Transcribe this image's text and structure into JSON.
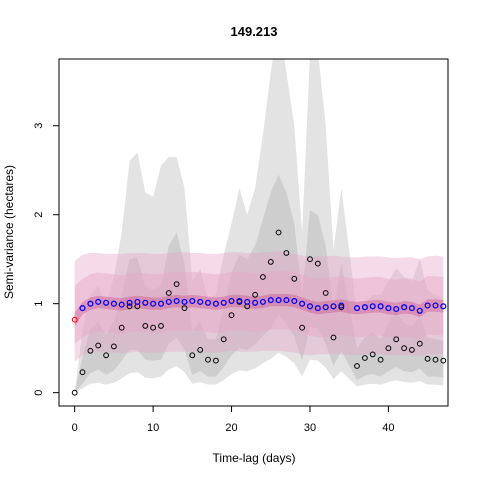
{
  "chart_data": {
    "type": "scatter",
    "title": "149.213",
    "xlabel": "Time-lag (days)",
    "ylabel": "Semi-variance (hectares)",
    "xlim": [
      -2,
      47.6
    ],
    "ylim": [
      -0.15,
      3.75
    ],
    "xticks": [
      0,
      10,
      20,
      30,
      40
    ],
    "yticks": [
      0,
      1,
      2,
      3
    ],
    "grid": false,
    "legend": "none",
    "colors": {
      "empirical_points": "#000000",
      "model_points": "#0000ff",
      "model_points_outline": "#9900cc",
      "lag0_point": "#ff0000",
      "empirical_band": "#bdbdbd",
      "model_band": "#e7a6c7",
      "model_mean_band": "#c8508f"
    },
    "empirical": {
      "x": [
        0,
        1,
        2,
        3,
        4,
        5,
        6,
        7,
        8,
        9,
        10,
        11,
        12,
        13,
        14,
        15,
        16,
        17,
        18,
        19,
        20,
        21,
        22,
        23,
        24,
        25,
        26,
        27,
        28,
        29,
        30,
        31,
        32,
        33,
        34,
        36,
        37,
        38,
        39,
        40,
        41,
        42,
        43,
        44,
        45,
        46,
        47
      ],
      "y": [
        0.0,
        0.23,
        0.47,
        0.53,
        0.42,
        0.52,
        0.73,
        0.97,
        0.97,
        0.75,
        0.73,
        0.75,
        1.12,
        1.22,
        0.95,
        0.42,
        0.48,
        0.37,
        0.36,
        0.6,
        0.87,
        1.02,
        0.97,
        1.1,
        1.3,
        1.47,
        1.8,
        1.57,
        1.28,
        0.73,
        1.5,
        1.45,
        1.12,
        0.62,
        0.96,
        0.3,
        0.39,
        0.43,
        0.37,
        0.5,
        0.6,
        0.5,
        0.48,
        0.55,
        0.38,
        0.37,
        0.36
      ]
    },
    "model": {
      "x": [
        1,
        2,
        3,
        4,
        5,
        6,
        7,
        8,
        9,
        10,
        11,
        12,
        13,
        14,
        15,
        16,
        17,
        18,
        19,
        20,
        21,
        22,
        23,
        24,
        25,
        26,
        27,
        28,
        29,
        30,
        31,
        32,
        33,
        34,
        36,
        37,
        38,
        39,
        40,
        41,
        42,
        43,
        44,
        45,
        46,
        47
      ],
      "y": [
        0.95,
        1.0,
        1.02,
        1.01,
        1.0,
        0.99,
        1.01,
        1.02,
        1.01,
        1.0,
        1.0,
        1.02,
        1.03,
        1.02,
        1.03,
        1.02,
        1.01,
        1.0,
        1.01,
        1.03,
        1.03,
        1.02,
        1.01,
        1.02,
        1.04,
        1.04,
        1.04,
        1.03,
        1.0,
        0.97,
        0.95,
        0.96,
        0.97,
        0.98,
        0.95,
        0.96,
        0.97,
        0.97,
        0.95,
        0.94,
        0.96,
        0.95,
        0.92,
        0.98,
        0.98,
        0.97
      ]
    },
    "lag0_model_point": {
      "x": 0,
      "y": 0.82
    },
    "empirical_band_outer": {
      "x": [
        0,
        1,
        2,
        3,
        4,
        5,
        6,
        7,
        8,
        9,
        10,
        11,
        12,
        13,
        14,
        15,
        16,
        17,
        18,
        19,
        20,
        21,
        22,
        23,
        24,
        25,
        26,
        27,
        28,
        29,
        30,
        31,
        32,
        33,
        34,
        36,
        37,
        38,
        39,
        40,
        41,
        42,
        43,
        44,
        45,
        46,
        47
      ],
      "upper": [
        0.0,
        0.7,
        1.1,
        1.2,
        1.0,
        1.3,
        1.8,
        2.6,
        2.7,
        2.25,
        2.2,
        2.55,
        2.65,
        2.65,
        2.3,
        1.25,
        1.4,
        1.05,
        1.1,
        1.55,
        1.9,
        2.3,
        2.0,
        2.3,
        2.9,
        3.6,
        4.2,
        3.6,
        3.0,
        1.8,
        3.8,
        3.85,
        3.0,
        1.6,
        2.3,
        0.9,
        1.0,
        1.1,
        1.1,
        1.25,
        1.4,
        1.3,
        1.25,
        1.5,
        1.15,
        1.1,
        1.05
      ],
      "lower": [
        0.0,
        0.05,
        0.1,
        0.11,
        0.09,
        0.11,
        0.16,
        0.22,
        0.23,
        0.17,
        0.16,
        0.18,
        0.26,
        0.3,
        0.23,
        0.1,
        0.12,
        0.09,
        0.09,
        0.14,
        0.21,
        0.25,
        0.24,
        0.27,
        0.33,
        0.38,
        0.45,
        0.4,
        0.33,
        0.18,
        0.37,
        0.36,
        0.28,
        0.15,
        0.24,
        0.07,
        0.09,
        0.1,
        0.09,
        0.12,
        0.14,
        0.12,
        0.11,
        0.13,
        0.09,
        0.09,
        0.08
      ]
    },
    "empirical_band_inner": {
      "x": [
        0,
        1,
        2,
        3,
        4,
        5,
        6,
        7,
        8,
        9,
        10,
        11,
        12,
        13,
        14,
        15,
        16,
        17,
        18,
        19,
        20,
        21,
        22,
        23,
        24,
        25,
        26,
        27,
        28,
        29,
        30,
        31,
        32,
        33,
        34,
        36,
        37,
        38,
        39,
        40,
        41,
        42,
        43,
        44,
        45,
        46,
        47
      ],
      "upper": [
        0.0,
        0.4,
        0.72,
        0.8,
        0.65,
        0.8,
        1.1,
        1.5,
        1.52,
        1.2,
        1.15,
        1.2,
        1.65,
        1.8,
        1.45,
        0.7,
        0.8,
        0.6,
        0.6,
        0.95,
        1.35,
        1.55,
        1.5,
        1.65,
        1.95,
        2.25,
        2.45,
        2.25,
        1.9,
        1.1,
        2.05,
        2.0,
        1.65,
        0.95,
        1.45,
        0.5,
        0.62,
        0.68,
        0.6,
        0.78,
        0.92,
        0.78,
        0.75,
        0.85,
        0.62,
        0.6,
        0.58
      ],
      "lower": [
        0.0,
        0.1,
        0.22,
        0.26,
        0.2,
        0.25,
        0.36,
        0.48,
        0.48,
        0.37,
        0.36,
        0.37,
        0.55,
        0.62,
        0.48,
        0.2,
        0.24,
        0.18,
        0.18,
        0.29,
        0.42,
        0.5,
        0.48,
        0.54,
        0.64,
        0.72,
        0.88,
        0.78,
        0.63,
        0.36,
        0.74,
        0.72,
        0.55,
        0.3,
        0.47,
        0.14,
        0.19,
        0.21,
        0.18,
        0.24,
        0.29,
        0.24,
        0.23,
        0.27,
        0.18,
        0.18,
        0.17
      ]
    },
    "model_band_outer": {
      "x": [
        0,
        1,
        2,
        3,
        4,
        5,
        6,
        7,
        8,
        9,
        10,
        11,
        12,
        13,
        14,
        15,
        16,
        17,
        18,
        19,
        20,
        21,
        22,
        23,
        24,
        25,
        26,
        27,
        28,
        29,
        30,
        31,
        32,
        33,
        34,
        35,
        36,
        37,
        38,
        39,
        40,
        41,
        42,
        43,
        44,
        45,
        46,
        47
      ],
      "upper": [
        1.48,
        1.55,
        1.57,
        1.57,
        1.56,
        1.56,
        1.56,
        1.57,
        1.57,
        1.57,
        1.56,
        1.56,
        1.57,
        1.58,
        1.58,
        1.57,
        1.57,
        1.56,
        1.56,
        1.57,
        1.58,
        1.58,
        1.57,
        1.57,
        1.58,
        1.58,
        1.59,
        1.58,
        1.56,
        1.54,
        1.52,
        1.53,
        1.53,
        1.54,
        1.53,
        1.52,
        1.52,
        1.53,
        1.53,
        1.53,
        1.52,
        1.51,
        1.52,
        1.52,
        1.5,
        1.53,
        1.54,
        1.53
      ],
      "lower": [
        0.35,
        0.42,
        0.45,
        0.46,
        0.45,
        0.45,
        0.44,
        0.45,
        0.46,
        0.45,
        0.45,
        0.45,
        0.46,
        0.46,
        0.46,
        0.46,
        0.45,
        0.45,
        0.45,
        0.46,
        0.47,
        0.46,
        0.46,
        0.46,
        0.47,
        0.47,
        0.47,
        0.46,
        0.45,
        0.43,
        0.42,
        0.43,
        0.43,
        0.44,
        0.43,
        0.42,
        0.42,
        0.43,
        0.43,
        0.43,
        0.42,
        0.42,
        0.42,
        0.42,
        0.41,
        0.43,
        0.43,
        0.43
      ]
    },
    "model_band_inner": {
      "x": [
        0,
        1,
        2,
        3,
        4,
        5,
        6,
        7,
        8,
        9,
        10,
        11,
        12,
        13,
        14,
        15,
        16,
        17,
        18,
        19,
        20,
        21,
        22,
        23,
        24,
        25,
        26,
        27,
        28,
        29,
        30,
        31,
        32,
        33,
        34,
        35,
        36,
        37,
        38,
        39,
        40,
        41,
        42,
        43,
        44,
        45,
        46,
        47
      ],
      "upper": [
        1.2,
        1.28,
        1.33,
        1.35,
        1.34,
        1.33,
        1.32,
        1.34,
        1.35,
        1.34,
        1.33,
        1.33,
        1.35,
        1.36,
        1.35,
        1.36,
        1.35,
        1.34,
        1.33,
        1.34,
        1.36,
        1.36,
        1.35,
        1.34,
        1.35,
        1.37,
        1.37,
        1.37,
        1.36,
        1.33,
        1.3,
        1.28,
        1.29,
        1.3,
        1.31,
        1.29,
        1.28,
        1.29,
        1.3,
        1.3,
        1.28,
        1.27,
        1.29,
        1.28,
        1.25,
        1.31,
        1.31,
        1.3
      ],
      "lower": [
        0.55,
        0.62,
        0.67,
        0.69,
        0.68,
        0.67,
        0.66,
        0.68,
        0.69,
        0.68,
        0.67,
        0.67,
        0.69,
        0.7,
        0.69,
        0.7,
        0.69,
        0.68,
        0.67,
        0.68,
        0.7,
        0.7,
        0.69,
        0.68,
        0.69,
        0.71,
        0.71,
        0.71,
        0.7,
        0.67,
        0.64,
        0.62,
        0.63,
        0.64,
        0.65,
        0.63,
        0.62,
        0.63,
        0.64,
        0.64,
        0.62,
        0.61,
        0.63,
        0.62,
        0.59,
        0.65,
        0.65,
        0.64
      ]
    },
    "model_mean_band": {
      "x": [
        0,
        1,
        2,
        3,
        4,
        5,
        6,
        7,
        8,
        9,
        10,
        11,
        12,
        13,
        14,
        15,
        16,
        17,
        18,
        19,
        20,
        21,
        22,
        23,
        24,
        25,
        26,
        27,
        28,
        29,
        30,
        31,
        32,
        33,
        34,
        35,
        36,
        37,
        38,
        39,
        40,
        41,
        42,
        43,
        44,
        45,
        46,
        47
      ],
      "upper": [
        0.9,
        1.02,
        1.07,
        1.09,
        1.08,
        1.07,
        1.06,
        1.08,
        1.09,
        1.08,
        1.07,
        1.07,
        1.09,
        1.1,
        1.09,
        1.1,
        1.09,
        1.08,
        1.07,
        1.08,
        1.1,
        1.1,
        1.09,
        1.08,
        1.09,
        1.11,
        1.11,
        1.11,
        1.1,
        1.07,
        1.04,
        1.02,
        1.03,
        1.04,
        1.05,
        1.03,
        1.02,
        1.03,
        1.04,
        1.04,
        1.02,
        1.01,
        1.03,
        1.02,
        0.99,
        1.05,
        1.05,
        1.04
      ],
      "lower": [
        0.74,
        0.88,
        0.93,
        0.95,
        0.94,
        0.93,
        0.92,
        0.94,
        0.95,
        0.94,
        0.93,
        0.93,
        0.95,
        0.96,
        0.95,
        0.96,
        0.95,
        0.94,
        0.93,
        0.94,
        0.96,
        0.96,
        0.95,
        0.94,
        0.95,
        0.97,
        0.97,
        0.97,
        0.96,
        0.93,
        0.9,
        0.88,
        0.89,
        0.9,
        0.91,
        0.89,
        0.88,
        0.89,
        0.9,
        0.9,
        0.88,
        0.87,
        0.89,
        0.88,
        0.85,
        0.91,
        0.91,
        0.9
      ]
    }
  }
}
